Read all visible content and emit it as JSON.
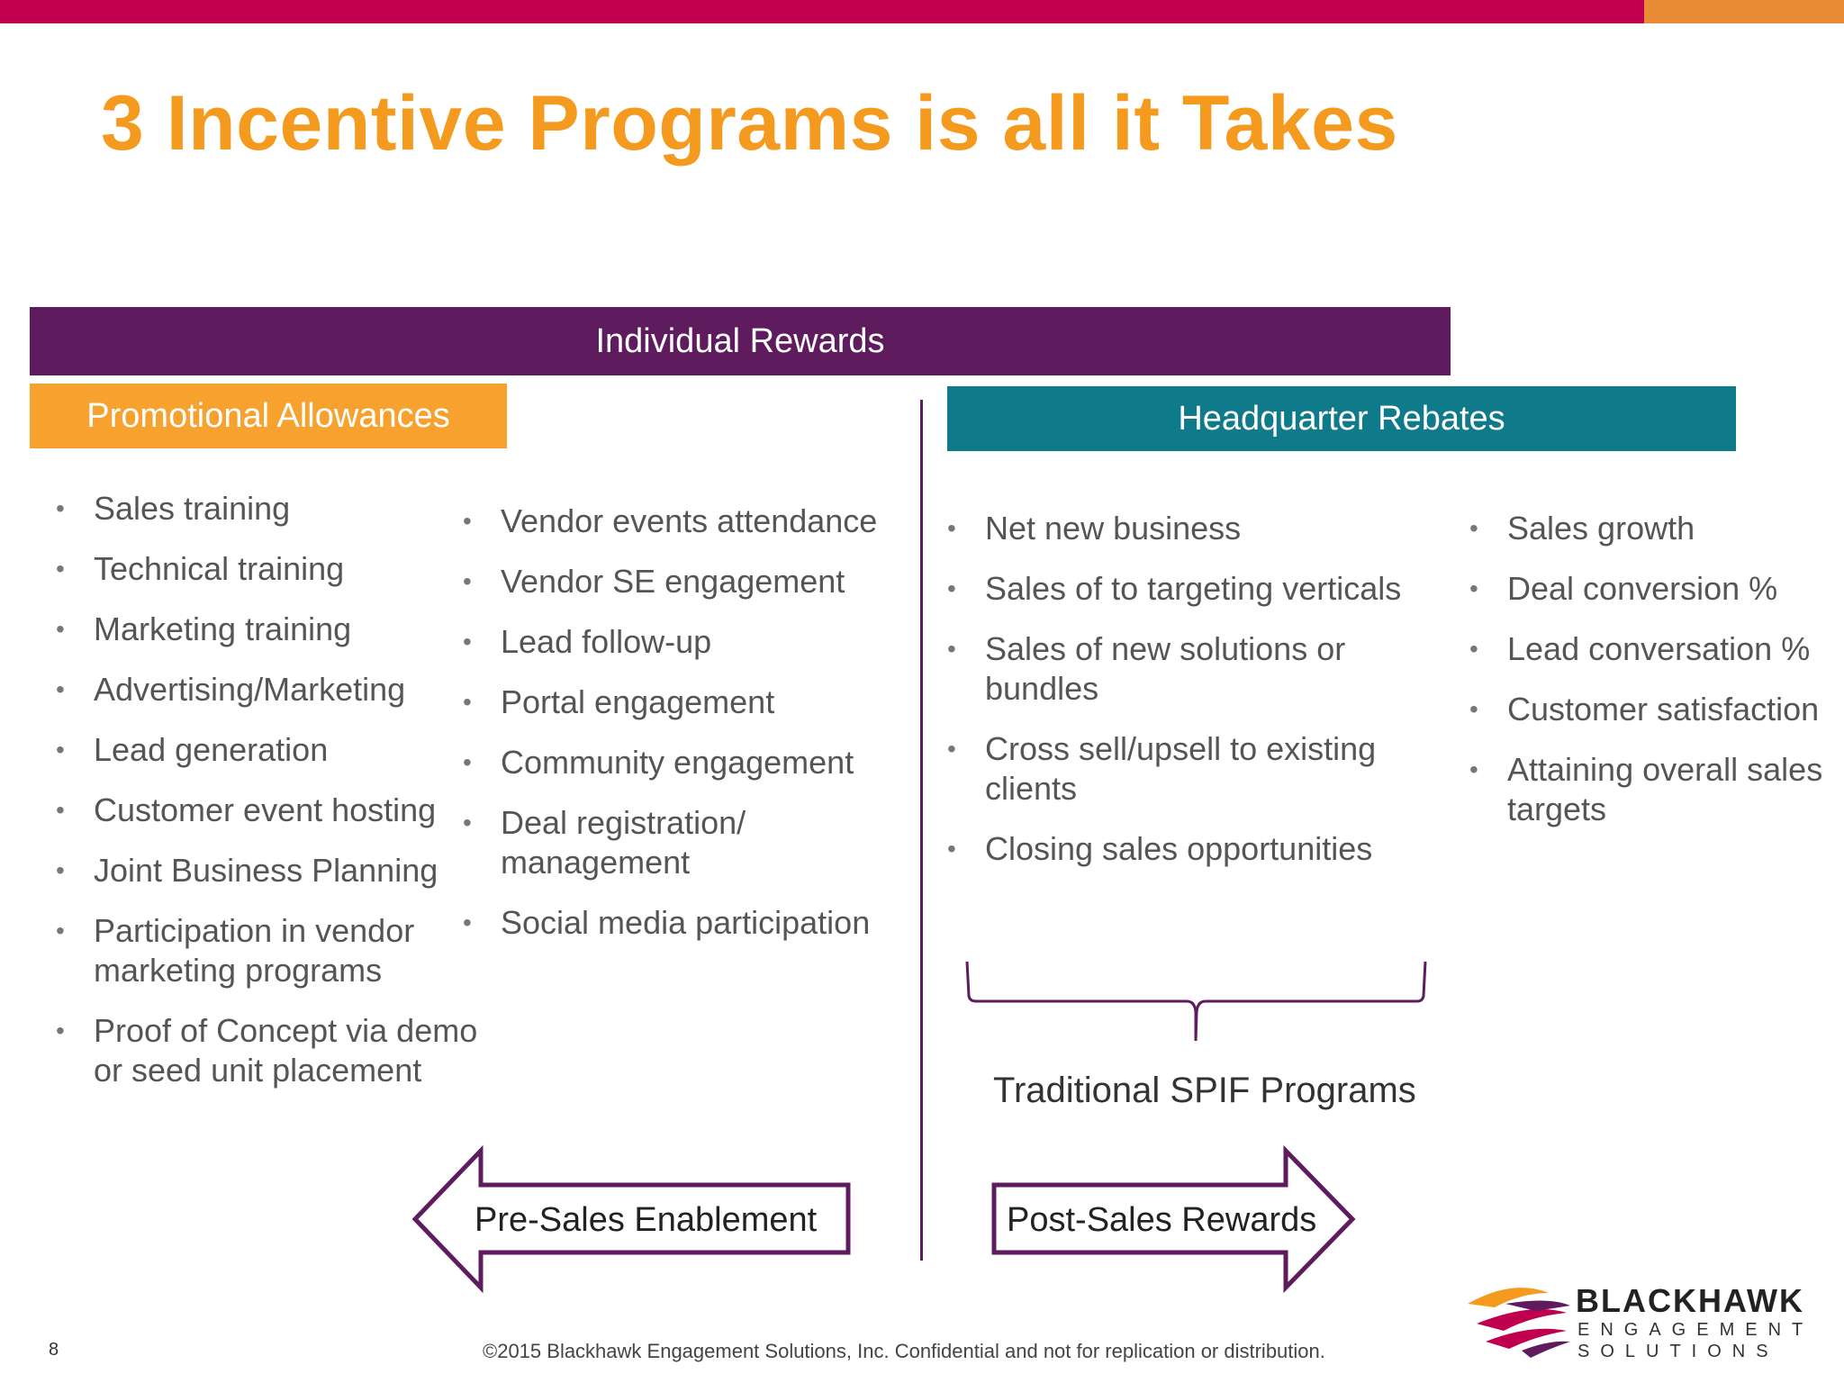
{
  "title": "3 Incentive Programs is all it Takes",
  "band": {
    "label": "Individual Rewards"
  },
  "promo": {
    "label": "Promotional Allowances"
  },
  "hq": {
    "label": "Headquarter Rebates"
  },
  "lists": {
    "promo_col1": [
      "Sales training",
      "Technical training",
      "Marketing training",
      "Advertising/Marketing",
      "Lead generation",
      "Customer event hosting",
      "Joint Business Planning",
      "Participation in vendor marketing programs",
      "Proof of Concept via demo or seed unit placement"
    ],
    "promo_col2": [
      "Vendor events attendance",
      "Vendor SE engagement",
      "Lead follow-up",
      "Portal engagement",
      "Community engagement",
      "Deal registration/ management",
      "Social media participation"
    ],
    "hq_col1": [
      "Net new business",
      "Sales of to targeting verticals",
      "Sales of new solutions or bundles",
      "Cross sell/upsell to existing clients",
      "Closing sales opportunities"
    ],
    "hq_col2": [
      "Sales growth",
      "Deal conversion %",
      "Lead conversation %",
      "Customer satisfaction",
      "Attaining overall sales targets"
    ]
  },
  "spif": {
    "label": "Traditional SPIF Programs"
  },
  "arrows": {
    "pre_label": "Pre-Sales Enablement",
    "post_label": "Post-Sales Rewards"
  },
  "footer": {
    "page_number": "8",
    "copyright": "©2015 Blackhawk Engagement Solutions, Inc. Confidential and not for replication or distribution."
  },
  "logo": {
    "name": "BLACKHAWK",
    "line1": "ENGAGEMENT",
    "line2": "SOLUTIONS",
    "icon": "blackhawk-swoosh-icon"
  },
  "colors": {
    "top_bar": "#c0004f",
    "top_bar_accent": "#e98a34",
    "title": "#f39a1f",
    "band": "#5e1b5e",
    "promo": "#f7a12e",
    "hq": "#0f7a8a"
  }
}
